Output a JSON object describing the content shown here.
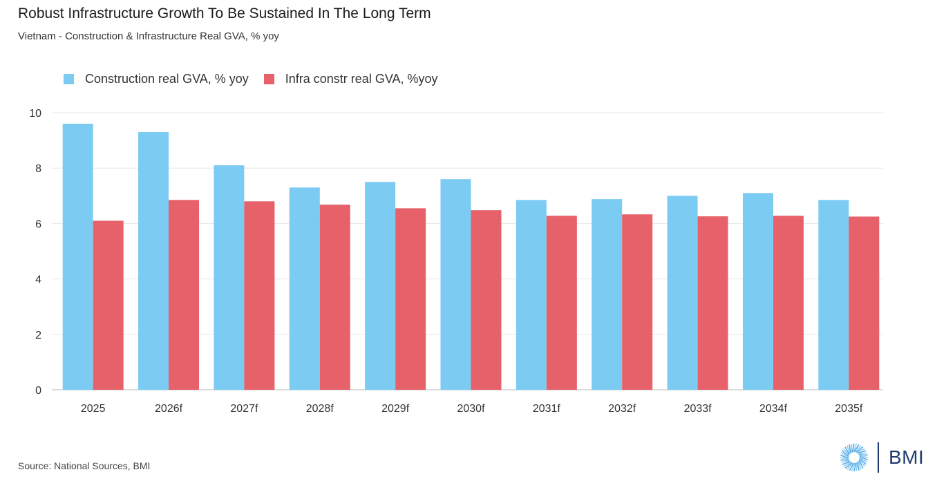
{
  "title": "Robust Infrastructure Growth To Be Sustained In The Long Term",
  "subtitle": "Vietnam - Construction & Infrastructure Real GVA, % yoy",
  "source": "Source: National Sources, BMI",
  "logo": {
    "text": "BMI",
    "icon": "bmi-sunburst-logo-icon"
  },
  "colors": {
    "series1": "#7ccbf2",
    "series2": "#e6616a",
    "grid": "#e6e6e6",
    "axis": "#333333"
  },
  "chart_data": {
    "type": "bar",
    "categories": [
      "2025",
      "2026f",
      "2027f",
      "2028f",
      "2029f",
      "2030f",
      "2031f",
      "2032f",
      "2033f",
      "2034f",
      "2035f"
    ],
    "series": [
      {
        "name": "Construction real GVA, % yoy",
        "values": [
          9.6,
          9.3,
          8.1,
          7.3,
          7.5,
          7.6,
          6.85,
          6.88,
          7.0,
          7.1,
          6.85
        ]
      },
      {
        "name": "Infra constr real GVA, %yoy",
        "values": [
          6.1,
          6.85,
          6.8,
          6.68,
          6.55,
          6.48,
          6.28,
          6.33,
          6.26,
          6.28,
          6.25
        ]
      }
    ],
    "ylim": [
      0,
      10
    ],
    "yticks": [
      "0",
      "2",
      "4",
      "6",
      "8",
      "10"
    ],
    "grid": true,
    "legend": "top-left"
  }
}
